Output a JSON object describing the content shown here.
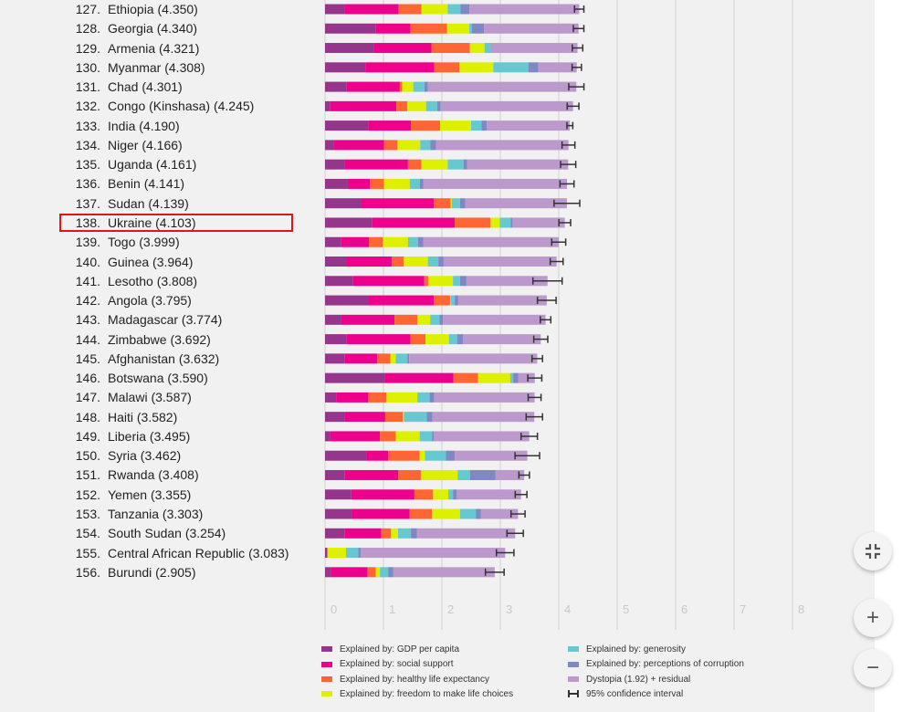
{
  "chart_data": {
    "type": "bar",
    "orientation": "horizontal",
    "stacked": true,
    "xlim": [
      0,
      8
    ],
    "x_ticks": [
      "0",
      "1",
      "2",
      "3",
      "4",
      "5",
      "6",
      "7",
      "8"
    ],
    "grid": true,
    "highlighted": "Ukraine",
    "legend": [
      {
        "key": "gdp",
        "label": "Explained by: GDP per capita",
        "color": "#96358c"
      },
      {
        "key": "social",
        "label": "Explained by: social support",
        "color": "#ec008c"
      },
      {
        "key": "health",
        "label": "Explained by: healthy life expectancy",
        "color": "#ff6633"
      },
      {
        "key": "freedom",
        "label": "Explained by: freedom to make life choices",
        "color": "#dcf000"
      },
      {
        "key": "generosity",
        "label": "Explained by: generosity",
        "color": "#66c8d0"
      },
      {
        "key": "corruption",
        "label": "Explained by: perceptions of corruption",
        "color": "#8088c4"
      },
      {
        "key": "dystopia",
        "label": "Dystopia (1.92) + residual",
        "color": "#bb99cc"
      },
      {
        "key": "ci",
        "label": "95% confidence interval",
        "color": "#333333"
      }
    ],
    "rows": [
      {
        "rank": "127.",
        "label": "Ethiopia (4.350)",
        "score": 4.35,
        "parts": [
          0.33,
          0.93,
          0.39,
          0.45,
          0.22,
          0.15
        ],
        "ci": 0.08
      },
      {
        "rank": "128.",
        "label": "Georgia (4.340)",
        "score": 4.34,
        "parts": [
          0.87,
          0.59,
          0.63,
          0.38,
          0.04,
          0.21
        ],
        "ci": 0.09
      },
      {
        "rank": "129.",
        "label": "Armenia (4.321)",
        "score": 4.321,
        "parts": [
          0.83,
          0.99,
          0.66,
          0.25,
          0.1,
          0.01
        ],
        "ci": 0.09
      },
      {
        "rank": "130.",
        "label": "Myanmar (4.308)",
        "score": 4.308,
        "parts": [
          0.69,
          1.18,
          0.43,
          0.58,
          0.6,
          0.17
        ],
        "ci": 0.08
      },
      {
        "rank": "131.",
        "label": "Chad (4.301)",
        "score": 4.301,
        "parts": [
          0.37,
          0.91,
          0.04,
          0.19,
          0.19,
          0.06
        ],
        "ci": 0.13
      },
      {
        "rank": "132.",
        "label": "Congo (Kinshasa) (4.245)",
        "score": 4.245,
        "parts": [
          0.09,
          1.13,
          0.19,
          0.32,
          0.19,
          0.06
        ],
        "ci": 0.1
      },
      {
        "rank": "133.",
        "label": "India (4.190)",
        "score": 4.19,
        "parts": [
          0.74,
          0.73,
          0.5,
          0.53,
          0.18,
          0.09
        ],
        "ci": 0.05
      },
      {
        "rank": "134.",
        "label": "Niger (4.166)",
        "score": 4.166,
        "parts": [
          0.15,
          0.86,
          0.23,
          0.39,
          0.17,
          0.1
        ],
        "ci": 0.11
      },
      {
        "rank": "135.",
        "label": "Uganda (4.161)",
        "score": 4.161,
        "parts": [
          0.33,
          1.09,
          0.23,
          0.45,
          0.27,
          0.06
        ],
        "ci": 0.13
      },
      {
        "rank": "136.",
        "label": "Benin (4.141)",
        "score": 4.141,
        "parts": [
          0.39,
          0.38,
          0.24,
          0.44,
          0.17,
          0.06
        ],
        "ci": 0.12
      },
      {
        "rank": "137.",
        "label": "Sudan (4.139)",
        "score": 4.139,
        "parts": [
          0.61,
          1.25,
          0.29,
          0.02,
          0.14,
          0.09
        ],
        "ci": 0.22
      },
      {
        "rank": "138.",
        "label": "Ukraine (4.103)",
        "score": 4.103,
        "parts": [
          0.81,
          1.41,
          0.61,
          0.16,
          0.19,
          0.03
        ],
        "ci": 0.1
      },
      {
        "rank": "139.",
        "label": "Togo (3.999)",
        "score": 3.999,
        "parts": [
          0.27,
          0.48,
          0.24,
          0.43,
          0.17,
          0.09
        ],
        "ci": 0.12
      },
      {
        "rank": "140.",
        "label": "Guinea (3.964)",
        "score": 3.964,
        "parts": [
          0.36,
          0.78,
          0.21,
          0.41,
          0.18,
          0.09
        ],
        "ci": 0.11
      },
      {
        "rank": "141.",
        "label": "Lesotho (3.808)",
        "score": 3.808,
        "parts": [
          0.48,
          1.22,
          0.07,
          0.42,
          0.12,
          0.11
        ],
        "ci": 0.25
      },
      {
        "rank": "142.",
        "label": "Angola (3.795)",
        "score": 3.795,
        "parts": [
          0.75,
          1.11,
          0.28,
          0.01,
          0.07,
          0.06
        ],
        "ci": 0.16
      },
      {
        "rank": "143.",
        "label": "Madagascar (3.774)",
        "score": 3.774,
        "parts": [
          0.28,
          0.91,
          0.39,
          0.22,
          0.16,
          0.06
        ],
        "ci": 0.09
      },
      {
        "rank": "144.",
        "label": "Zimbabwe (3.692)",
        "score": 3.692,
        "parts": [
          0.37,
          1.09,
          0.26,
          0.4,
          0.14,
          0.1
        ],
        "ci": 0.12
      },
      {
        "rank": "145.",
        "label": "Afghanistan (3.632)",
        "score": 3.632,
        "parts": [
          0.34,
          0.55,
          0.23,
          0.09,
          0.2,
          0.03
        ],
        "ci": 0.09
      },
      {
        "rank": "146.",
        "label": "Botswana (3.590)",
        "score": 3.59,
        "parts": [
          1.03,
          1.17,
          0.42,
          0.55,
          0.05,
          0.09
        ],
        "ci": 0.12
      },
      {
        "rank": "147.",
        "label": "Malawi (3.587)",
        "score": 3.587,
        "parts": [
          0.19,
          0.55,
          0.31,
          0.53,
          0.21,
          0.08
        ],
        "ci": 0.11
      },
      {
        "rank": "148.",
        "label": "Haiti (3.582)",
        "score": 3.582,
        "parts": [
          0.33,
          0.7,
          0.3,
          0.02,
          0.39,
          0.1
        ],
        "ci": 0.14
      },
      {
        "rank": "149.",
        "label": "Liberia (3.495)",
        "score": 3.495,
        "parts": [
          0.08,
          0.86,
          0.27,
          0.41,
          0.21,
          0.03
        ],
        "ci": 0.14
      },
      {
        "rank": "150.",
        "label": "Syria (3.462)",
        "score": 3.462,
        "parts": [
          0.71,
          0.37,
          0.54,
          0.09,
          0.36,
          0.15
        ],
        "ci": 0.21
      },
      {
        "rank": "151.",
        "label": "Rwanda (3.408)",
        "score": 3.408,
        "parts": [
          0.34,
          0.91,
          0.39,
          0.63,
          0.21,
          0.44
        ],
        "ci": 0.09
      },
      {
        "rank": "152.",
        "label": "Yemen (3.355)",
        "score": 3.355,
        "parts": [
          0.45,
          1.08,
          0.32,
          0.26,
          0.08,
          0.06
        ],
        "ci": 0.1
      },
      {
        "rank": "153.",
        "label": "Tanzania (3.303)",
        "score": 3.303,
        "parts": [
          0.46,
          0.99,
          0.38,
          0.48,
          0.27,
          0.09
        ],
        "ci": 0.12
      },
      {
        "rank": "154.",
        "label": "South Sudan (3.254)",
        "score": 3.254,
        "parts": [
          0.34,
          0.62,
          0.17,
          0.12,
          0.22,
          0.1
        ],
        "ci": 0.14
      },
      {
        "rank": "155.",
        "label": "Central African Republic (3.083)",
        "score": 3.083,
        "parts": [
          0.04,
          0.0,
          0.0,
          0.32,
          0.21,
          0.04
        ],
        "ci": 0.15
      },
      {
        "rank": "156.",
        "label": "Burundi (2.905)",
        "score": 2.905,
        "parts": [
          0.1,
          0.63,
          0.14,
          0.07,
          0.14,
          0.09
        ],
        "ci": 0.16
      }
    ]
  },
  "controls": {
    "exit_fullscreen_icon": "exit-fullscreen-icon",
    "zoom_in_icon": "+",
    "zoom_out_icon": "−"
  }
}
